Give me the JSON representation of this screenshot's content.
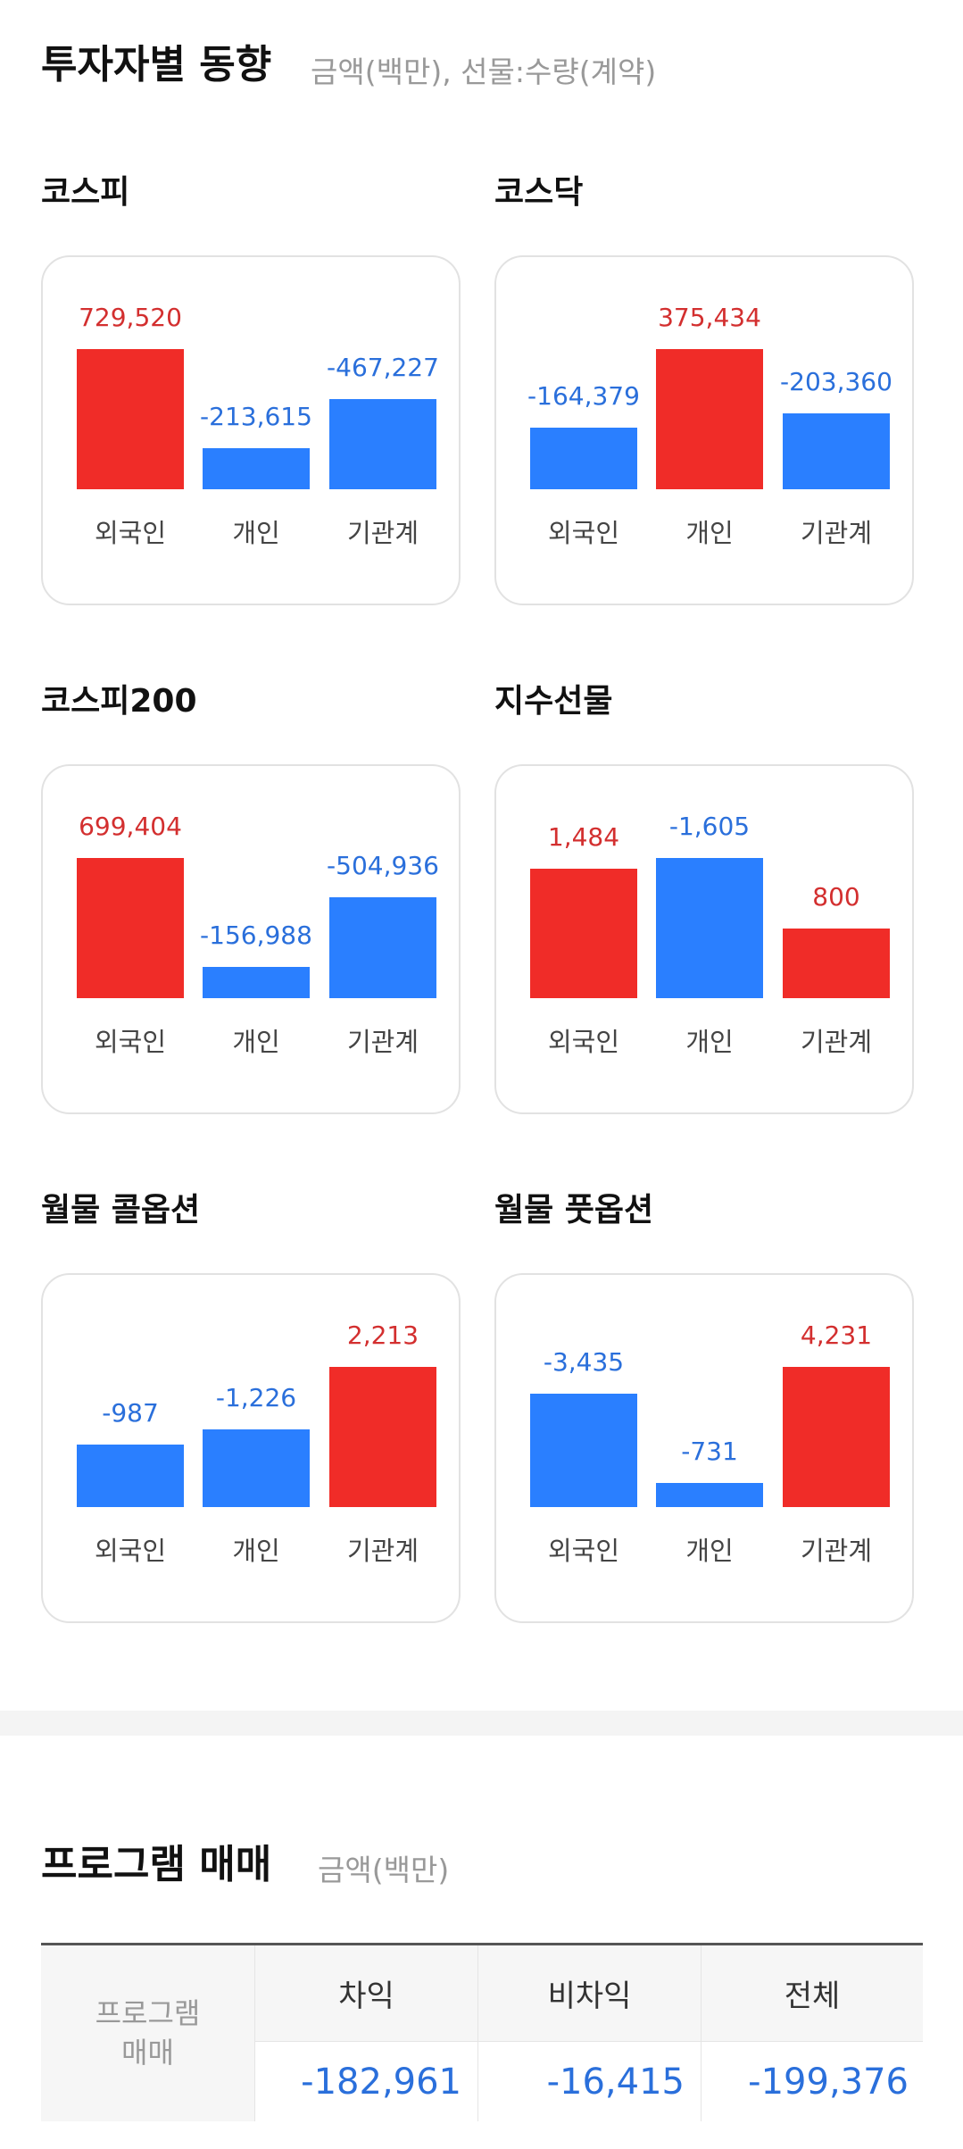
{
  "investor_section": {
    "title": "투자자별 동향",
    "subtitle": "금액(백만), 선물:수량(계약)"
  },
  "colors": {
    "positive": "#f02c28",
    "negative": "#2a7fff",
    "positive_text": "#d32f2f",
    "negative_text": "#2a6fdb"
  },
  "charts": [
    {
      "title": "코스피",
      "categories": [
        "외국인",
        "개인",
        "기관계"
      ],
      "values": [
        729520,
        -213615,
        -467227
      ],
      "labels": [
        "729,520",
        "-213,615",
        "-467,227"
      ]
    },
    {
      "title": "코스닥",
      "categories": [
        "외국인",
        "개인",
        "기관계"
      ],
      "values": [
        -164379,
        375434,
        -203360
      ],
      "labels": [
        "-164,379",
        "375,434",
        "-203,360"
      ]
    },
    {
      "title": "코스피200",
      "categories": [
        "외국인",
        "개인",
        "기관계"
      ],
      "values": [
        699404,
        -156988,
        -504936
      ],
      "labels": [
        "699,404",
        "-156,988",
        "-504,936"
      ]
    },
    {
      "title": "지수선물",
      "categories": [
        "외국인",
        "개인",
        "기관계"
      ],
      "values": [
        1484,
        -1605,
        800
      ],
      "labels": [
        "1,484",
        "-1,605",
        "800"
      ]
    },
    {
      "title": "월물 콜옵션",
      "categories": [
        "외국인",
        "개인",
        "기관계"
      ],
      "values": [
        -987,
        -1226,
        2213
      ],
      "labels": [
        "-987",
        "-1,226",
        "2,213"
      ]
    },
    {
      "title": "월물 풋옵션",
      "categories": [
        "외국인",
        "개인",
        "기관계"
      ],
      "values": [
        -3435,
        -731,
        4231
      ],
      "labels": [
        "-3,435",
        "-731",
        "4,231"
      ]
    }
  ],
  "program_section": {
    "title": "프로그램 매매",
    "subtitle": "금액(백만)",
    "row_header": "프로그램\n매매",
    "columns": [
      "차익",
      "비차익",
      "전체"
    ],
    "values": [
      "-182,961",
      "-16,415",
      "-199,376"
    ]
  }
}
